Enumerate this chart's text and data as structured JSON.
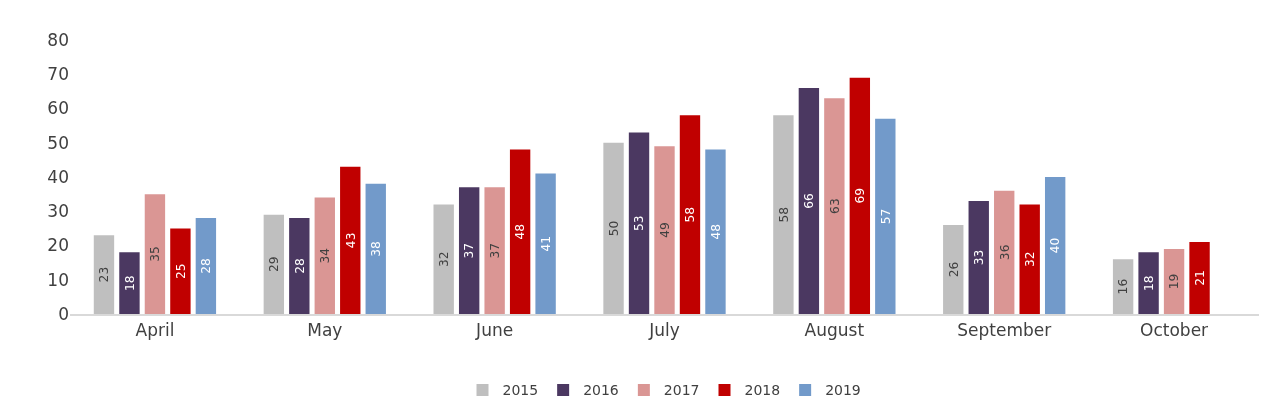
{
  "chart_data": {
    "type": "bar",
    "categories": [
      "April",
      "May",
      "June",
      "July",
      "August",
      "September",
      "October"
    ],
    "series": [
      {
        "name": "2015",
        "color": "#bfbfbf",
        "values": [
          23,
          29,
          32,
          50,
          58,
          26,
          16
        ]
      },
      {
        "name": "2016",
        "color": "#4b3861",
        "values": [
          18,
          28,
          37,
          53,
          66,
          33,
          18
        ]
      },
      {
        "name": "2017",
        "color": "#da9694",
        "values": [
          35,
          34,
          37,
          49,
          63,
          36,
          19
        ]
      },
      {
        "name": "2018",
        "color": "#c00000",
        "values": [
          25,
          43,
          48,
          58,
          69,
          32,
          21
        ]
      },
      {
        "name": "2019",
        "color": "#729aca",
        "values": [
          28,
          38,
          41,
          48,
          57,
          40,
          null
        ]
      }
    ],
    "ylim": [
      0,
      80
    ],
    "yticks": [
      0,
      10,
      20,
      30,
      40,
      50,
      60,
      70,
      80
    ],
    "data_labels": true,
    "grid": false,
    "legend": "bottom"
  }
}
